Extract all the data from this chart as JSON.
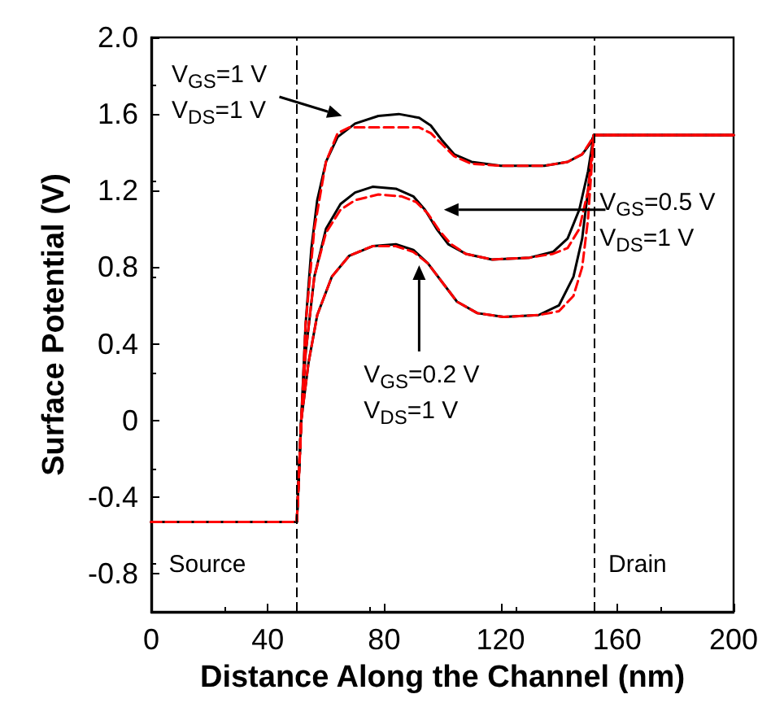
{
  "chart_data": {
    "type": "line",
    "xlabel": "Distance Along the Channel (nm)",
    "ylabel": "Surface Potential (V)",
    "xlim": [
      0,
      200
    ],
    "xticks": [
      0,
      40,
      80,
      120,
      160,
      200
    ],
    "ylim": [
      -1.0,
      2.0
    ],
    "yticks": [
      {
        "value": 2,
        "label": "2.0"
      },
      1.6,
      1.2,
      0.8,
      0.4,
      0,
      -0.4,
      -0.8
    ],
    "marker": "none",
    "series": [
      {
        "color": "#000000",
        "line_style": "solid",
        "x": [
          0,
          50,
          51.5,
          53,
          55,
          57,
          60,
          64,
          70,
          78,
          85,
          92,
          96,
          100,
          104,
          110,
          120,
          135,
          143,
          148,
          151,
          152,
          200
        ],
        "values": [
          -0.53,
          -0.53,
          0,
          0.5,
          0.9,
          1.15,
          1.35,
          1.48,
          1.55,
          1.59,
          1.6,
          1.58,
          1.54,
          1.46,
          1.39,
          1.35,
          1.33,
          1.33,
          1.35,
          1.39,
          1.45,
          1.49,
          1.49
        ]
      },
      {
        "color": "#ff0000",
        "line_style": "dashed",
        "x": [
          0,
          50,
          51,
          53,
          56,
          60,
          64,
          68,
          92,
          96,
          100,
          104,
          110,
          120,
          135,
          143,
          148,
          151,
          152,
          200
        ],
        "values": [
          -0.53,
          -0.53,
          -0.2,
          0.5,
          1.0,
          1.35,
          1.5,
          1.53,
          1.53,
          1.5,
          1.44,
          1.38,
          1.34,
          1.33,
          1.33,
          1.35,
          1.39,
          1.46,
          1.49,
          1.49
        ]
      },
      {
        "color": "#000000",
        "line_style": "solid",
        "x": [
          0,
          50,
          51.5,
          53,
          56,
          60,
          65,
          70,
          76,
          84,
          90,
          94,
          98,
          102,
          108,
          117,
          130,
          138,
          143,
          147,
          150,
          152,
          200
        ],
        "values": [
          -0.53,
          -0.53,
          0,
          0.35,
          0.75,
          1.0,
          1.13,
          1.19,
          1.22,
          1.21,
          1.17,
          1.1,
          1.0,
          0.92,
          0.87,
          0.84,
          0.85,
          0.88,
          0.95,
          1.1,
          1.3,
          1.49,
          1.49
        ]
      },
      {
        "color": "#ff0000",
        "line_style": "dashed",
        "x": [
          0,
          50,
          51.5,
          53,
          56,
          60,
          65,
          70,
          78,
          86,
          91,
          95,
          99,
          103,
          108,
          117,
          130,
          138,
          143,
          147,
          150,
          152,
          200
        ],
        "values": [
          -0.53,
          -0.53,
          0,
          0.35,
          0.75,
          0.98,
          1.1,
          1.15,
          1.18,
          1.17,
          1.14,
          1.08,
          0.99,
          0.92,
          0.87,
          0.84,
          0.85,
          0.87,
          0.9,
          1.0,
          1.2,
          1.49,
          1.49
        ]
      },
      {
        "color": "#000000",
        "line_style": "solid",
        "x": [
          0,
          50,
          51.5,
          54,
          57,
          62,
          68,
          76,
          84,
          90,
          95,
          100,
          105,
          112,
          121,
          133,
          140,
          145,
          148,
          150,
          152,
          200
        ],
        "values": [
          -0.53,
          -0.53,
          0,
          0.3,
          0.55,
          0.75,
          0.86,
          0.91,
          0.92,
          0.89,
          0.82,
          0.72,
          0.62,
          0.56,
          0.54,
          0.55,
          0.6,
          0.75,
          0.95,
          1.2,
          1.49,
          1.49
        ]
      },
      {
        "color": "#ff0000",
        "line_style": "dashed",
        "x": [
          0,
          50,
          51.5,
          54,
          57,
          62,
          68,
          76,
          84,
          90,
          95,
          100,
          105,
          112,
          121,
          133,
          140,
          145,
          148,
          150,
          152,
          200
        ],
        "values": [
          -0.53,
          -0.53,
          0,
          0.3,
          0.55,
          0.75,
          0.86,
          0.91,
          0.91,
          0.88,
          0.82,
          0.72,
          0.62,
          0.56,
          0.54,
          0.55,
          0.57,
          0.65,
          0.8,
          1.05,
          1.49,
          1.49
        ]
      }
    ],
    "ref_lines": [
      {
        "axis": "x",
        "value": 50,
        "color": "#000000",
        "line_style": "dashed"
      },
      {
        "axis": "x",
        "value": 152,
        "color": "#000000",
        "line_style": "dashed"
      }
    ],
    "annotations": [
      "V$_{GS}$=1 V\nV$_{DS}$=1 V",
      "V$_{GS}$=0.5 V\nV$_{DS}$=1 V",
      "V$_{GS}$=0.2 V\nV$_{DS}$=1 V",
      "Source",
      "Drain"
    ]
  }
}
